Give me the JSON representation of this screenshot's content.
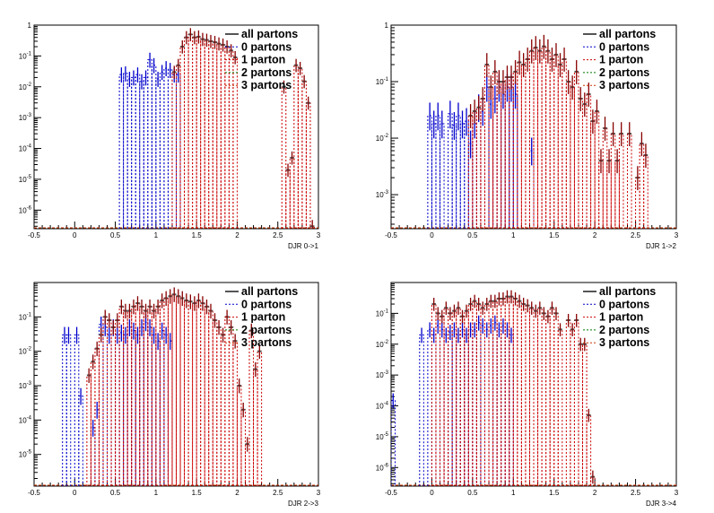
{
  "legend_labels": [
    "all partons",
    "0 partons",
    "1 parton",
    "2 partons",
    "3 partons"
  ],
  "colors": {
    "all": "#555555",
    "p0": "#0000cc",
    "p1": "#cc0000",
    "p2": "#007700",
    "p3": "#cc3300",
    "err": "#880000"
  },
  "chart_data": [
    {
      "type": "histogram",
      "xlabel": "DJR 0->1",
      "xlim": [
        -0.5,
        3
      ],
      "ylim": [
        2.5e-07,
        1
      ],
      "log_y": true,
      "x_ticks": [
        "-0.5",
        "0",
        "0.5",
        "1",
        "1.5",
        "2",
        "2.5",
        "3"
      ],
      "y_ticks": [
        "1",
        "10^-1",
        "10^-2",
        "10^-3",
        "10^-4",
        "10^-5",
        "10^-6"
      ],
      "legend_position": "top-right",
      "bin_width": 0.05,
      "series": [
        {
          "key": "p0",
          "points": [
            [
              0.575,
              0.025
            ],
            [
              0.625,
              0.027
            ],
            [
              0.675,
              0.018
            ],
            [
              0.725,
              0.02
            ],
            [
              0.775,
              0.025
            ],
            [
              0.825,
              0.015
            ],
            [
              0.875,
              0.02
            ],
            [
              0.925,
              0.075
            ],
            [
              0.975,
              0.05
            ],
            [
              1.025,
              0.018
            ],
            [
              1.075,
              0.03
            ],
            [
              1.125,
              0.04
            ],
            [
              1.175,
              0.035
            ],
            [
              1.225,
              0.025
            ],
            [
              1.275,
              0.025
            ]
          ]
        },
        {
          "key": "all",
          "points": [
            [
              1.225,
              0.03
            ],
            [
              1.275,
              0.05
            ],
            [
              1.325,
              0.2
            ],
            [
              1.375,
              0.4
            ],
            [
              1.425,
              0.5
            ],
            [
              1.475,
              0.4
            ],
            [
              1.525,
              0.42
            ],
            [
              1.575,
              0.35
            ],
            [
              1.625,
              0.33
            ],
            [
              1.675,
              0.3
            ],
            [
              1.725,
              0.28
            ],
            [
              1.775,
              0.25
            ],
            [
              1.825,
              0.23
            ],
            [
              1.875,
              0.2
            ],
            [
              1.925,
              0.15
            ],
            [
              1.975,
              0.09
            ],
            [
              2.575,
              0.01
            ],
            [
              2.625,
              2e-05
            ],
            [
              2.675,
              5e-05
            ],
            [
              2.725,
              0.05
            ],
            [
              2.775,
              0.04
            ],
            [
              2.825,
              0.015
            ],
            [
              2.875,
              0.003
            ],
            [
              2.925,
              3e-07
            ]
          ]
        }
      ]
    },
    {
      "type": "histogram",
      "xlabel": "DJR 1->2",
      "xlim": [
        -0.5,
        3
      ],
      "ylim": [
        0.00025,
        1
      ],
      "log_y": true,
      "x_ticks": [
        "-0.5",
        "0",
        "0.5",
        "1",
        "1.5",
        "2",
        "2.5",
        "3"
      ],
      "y_ticks": [
        "1",
        "10^-1",
        "10^-2",
        "10^-3"
      ],
      "legend_position": "top-right",
      "bin_width": 0.05,
      "series": [
        {
          "key": "p0",
          "points": [
            [
              -0.025,
              0.025
            ],
            [
              0.025,
              0.018
            ],
            [
              0.075,
              0.025
            ],
            [
              0.125,
              0.018
            ],
            [
              0.225,
              0.027
            ],
            [
              0.275,
              0.017
            ],
            [
              0.325,
              0.025
            ],
            [
              0.375,
              0.018
            ],
            [
              0.425,
              0.02
            ],
            [
              0.475,
              0.008
            ],
            [
              0.525,
              0.018
            ],
            [
              0.575,
              0.035
            ],
            [
              0.625,
              0.03
            ],
            [
              0.675,
              0.08
            ],
            [
              0.725,
              0.04
            ],
            [
              0.775,
              0.05
            ],
            [
              0.825,
              0.08
            ],
            [
              0.875,
              0.06
            ],
            [
              0.925,
              0.08
            ],
            [
              0.975,
              0.08
            ],
            [
              1.025,
              0.06
            ],
            [
              1.225,
              0.006
            ]
          ]
        },
        {
          "key": "all",
          "points": [
            [
              0.475,
              0.025
            ],
            [
              0.525,
              0.03
            ],
            [
              0.575,
              0.035
            ],
            [
              0.625,
              0.05
            ],
            [
              0.675,
              0.2
            ],
            [
              0.725,
              0.08
            ],
            [
              0.775,
              0.15
            ],
            [
              0.825,
              0.1
            ],
            [
              0.875,
              0.1
            ],
            [
              0.925,
              0.12
            ],
            [
              0.975,
              0.12
            ],
            [
              1.025,
              0.15
            ],
            [
              1.075,
              0.22
            ],
            [
              1.125,
              0.2
            ],
            [
              1.175,
              0.25
            ],
            [
              1.225,
              0.35
            ],
            [
              1.275,
              0.4
            ],
            [
              1.325,
              0.35
            ],
            [
              1.375,
              0.42
            ],
            [
              1.425,
              0.35
            ],
            [
              1.475,
              0.25
            ],
            [
              1.525,
              0.3
            ],
            [
              1.575,
              0.2
            ],
            [
              1.625,
              0.25
            ],
            [
              1.675,
              0.1
            ],
            [
              1.725,
              0.08
            ],
            [
              1.775,
              0.15
            ],
            [
              1.825,
              0.05
            ],
            [
              1.875,
              0.04
            ],
            [
              1.925,
              0.06
            ],
            [
              1.975,
              0.02
            ],
            [
              2.025,
              0.03
            ],
            [
              2.075,
              0.004
            ],
            [
              2.125,
              0.015
            ],
            [
              2.175,
              0.004
            ],
            [
              2.225,
              0.012
            ],
            [
              2.275,
              0.004
            ],
            [
              2.325,
              0.012
            ],
            [
              2.425,
              0.012
            ],
            [
              2.525,
              0.002
            ],
            [
              2.575,
              0.008
            ],
            [
              2.625,
              0.005
            ]
          ]
        }
      ]
    },
    {
      "type": "histogram",
      "xlabel": "DJR 2->3",
      "xlim": [
        -0.5,
        3
      ],
      "ylim": [
        1.2e-06,
        1
      ],
      "log_y": true,
      "x_ticks": [
        "-0.5",
        "0",
        "0.5",
        "1",
        "1.5",
        "2",
        "2.5",
        "3"
      ],
      "y_ticks": [
        "10^-1",
        "10^-2",
        "10^-3",
        "10^-4",
        "10^-5"
      ],
      "legend_position": "top-right",
      "bin_width": 0.05,
      "series": [
        {
          "key": "p0",
          "points": [
            [
              -0.125,
              0.03
            ],
            [
              -0.075,
              0.03
            ],
            [
              0.025,
              0.03
            ],
            [
              0.075,
              0.0005
            ],
            [
              0.225,
              6e-05
            ],
            [
              0.275,
              0.0002
            ],
            [
              0.325,
              0.06
            ],
            [
              0.375,
              0.05
            ],
            [
              0.425,
              0.03
            ],
            [
              0.475,
              0.05
            ],
            [
              0.525,
              0.03
            ],
            [
              0.575,
              0.035
            ],
            [
              0.625,
              0.03
            ],
            [
              0.675,
              0.05
            ],
            [
              0.725,
              0.04
            ],
            [
              0.775,
              0.03
            ],
            [
              0.825,
              0.05
            ],
            [
              0.875,
              0.07
            ],
            [
              0.925,
              0.05
            ],
            [
              0.975,
              0.03
            ],
            [
              1.025,
              0.02
            ],
            [
              1.075,
              0.04
            ],
            [
              1.125,
              0.03
            ],
            [
              1.175,
              0.02
            ]
          ]
        },
        {
          "key": "all",
          "points": [
            [
              0.175,
              0.002
            ],
            [
              0.225,
              0.005
            ],
            [
              0.275,
              0.012
            ],
            [
              0.325,
              0.03
            ],
            [
              0.375,
              0.1
            ],
            [
              0.425,
              0.08
            ],
            [
              0.475,
              0.05
            ],
            [
              0.525,
              0.08
            ],
            [
              0.575,
              0.2
            ],
            [
              0.625,
              0.15
            ],
            [
              0.675,
              0.15
            ],
            [
              0.725,
              0.2
            ],
            [
              0.775,
              0.25
            ],
            [
              0.825,
              0.2
            ],
            [
              0.875,
              0.15
            ],
            [
              0.925,
              0.2
            ],
            [
              0.975,
              0.15
            ],
            [
              1.025,
              0.2
            ],
            [
              1.075,
              0.3
            ],
            [
              1.125,
              0.35
            ],
            [
              1.175,
              0.4
            ],
            [
              1.225,
              0.45
            ],
            [
              1.275,
              0.4
            ],
            [
              1.325,
              0.35
            ],
            [
              1.375,
              0.3
            ],
            [
              1.425,
              0.28
            ],
            [
              1.475,
              0.25
            ],
            [
              1.525,
              0.3
            ],
            [
              1.575,
              0.25
            ],
            [
              1.625,
              0.2
            ],
            [
              1.675,
              0.15
            ],
            [
              1.725,
              0.08
            ],
            [
              1.775,
              0.05
            ],
            [
              1.825,
              0.03
            ],
            [
              1.875,
              0.1
            ],
            [
              1.925,
              0.05
            ],
            [
              1.975,
              0.02
            ],
            [
              2.025,
              0.001
            ],
            [
              2.075,
              0.0002
            ],
            [
              2.125,
              2e-05
            ],
            [
              2.175,
              0.04
            ],
            [
              2.225,
              0.003
            ],
            [
              2.275,
              0.01
            ]
          ]
        }
      ]
    },
    {
      "type": "histogram",
      "xlabel": "DJR 3->4",
      "xlim": [
        -0.5,
        3
      ],
      "ylim": [
        2.5e-07,
        1
      ],
      "log_y": true,
      "x_ticks": [
        "-0.5",
        "0",
        "0.5",
        "1",
        "1.5",
        "2",
        "2.5",
        "3"
      ],
      "y_ticks": [
        "10^-1",
        "10^-2",
        "10^-3",
        "10^-4",
        "10^-5",
        "10^-6"
      ],
      "legend_position": "top-right",
      "bin_width": 0.05,
      "series": [
        {
          "key": "p0",
          "points": [
            [
              -0.475,
              0.00015
            ],
            [
              -0.125,
              0.02
            ],
            [
              -0.025,
              0.03
            ],
            [
              0.025,
              0.02
            ],
            [
              0.075,
              0.04
            ],
            [
              0.125,
              0.03
            ],
            [
              0.175,
              0.02
            ],
            [
              0.225,
              0.025
            ],
            [
              0.275,
              0.03
            ],
            [
              0.325,
              0.02
            ],
            [
              0.375,
              0.03
            ],
            [
              0.425,
              0.02
            ],
            [
              0.475,
              0.03
            ],
            [
              0.525,
              0.03
            ],
            [
              0.575,
              0.05
            ],
            [
              0.625,
              0.04
            ],
            [
              0.675,
              0.03
            ],
            [
              0.725,
              0.04
            ],
            [
              0.775,
              0.05
            ],
            [
              0.825,
              0.03
            ],
            [
              0.875,
              0.04
            ],
            [
              0.925,
              0.03
            ],
            [
              0.975,
              0.02
            ]
          ]
        },
        {
          "key": "all",
          "points": [
            [
              0.025,
              0.2
            ],
            [
              0.075,
              0.1
            ],
            [
              0.125,
              0.08
            ],
            [
              0.175,
              0.15
            ],
            [
              0.225,
              0.1
            ],
            [
              0.275,
              0.12
            ],
            [
              0.325,
              0.15
            ],
            [
              0.375,
              0.08
            ],
            [
              0.425,
              0.12
            ],
            [
              0.475,
              0.2
            ],
            [
              0.525,
              0.25
            ],
            [
              0.575,
              0.2
            ],
            [
              0.625,
              0.15
            ],
            [
              0.675,
              0.2
            ],
            [
              0.725,
              0.25
            ],
            [
              0.775,
              0.25
            ],
            [
              0.825,
              0.3
            ],
            [
              0.875,
              0.3
            ],
            [
              0.925,
              0.35
            ],
            [
              0.975,
              0.35
            ],
            [
              1.025,
              0.3
            ],
            [
              1.075,
              0.25
            ],
            [
              1.125,
              0.2
            ],
            [
              1.175,
              0.18
            ],
            [
              1.225,
              0.15
            ],
            [
              1.275,
              0.12
            ],
            [
              1.325,
              0.15
            ],
            [
              1.375,
              0.1
            ],
            [
              1.425,
              0.08
            ],
            [
              1.475,
              0.15
            ],
            [
              1.525,
              0.1
            ],
            [
              1.575,
              0.03
            ],
            [
              1.675,
              0.06
            ],
            [
              1.725,
              0.03
            ],
            [
              1.775,
              0.06
            ],
            [
              1.825,
              0.01
            ],
            [
              1.875,
              0.01
            ],
            [
              1.925,
              5e-05
            ],
            [
              1.975,
              5e-07
            ]
          ]
        }
      ]
    }
  ]
}
